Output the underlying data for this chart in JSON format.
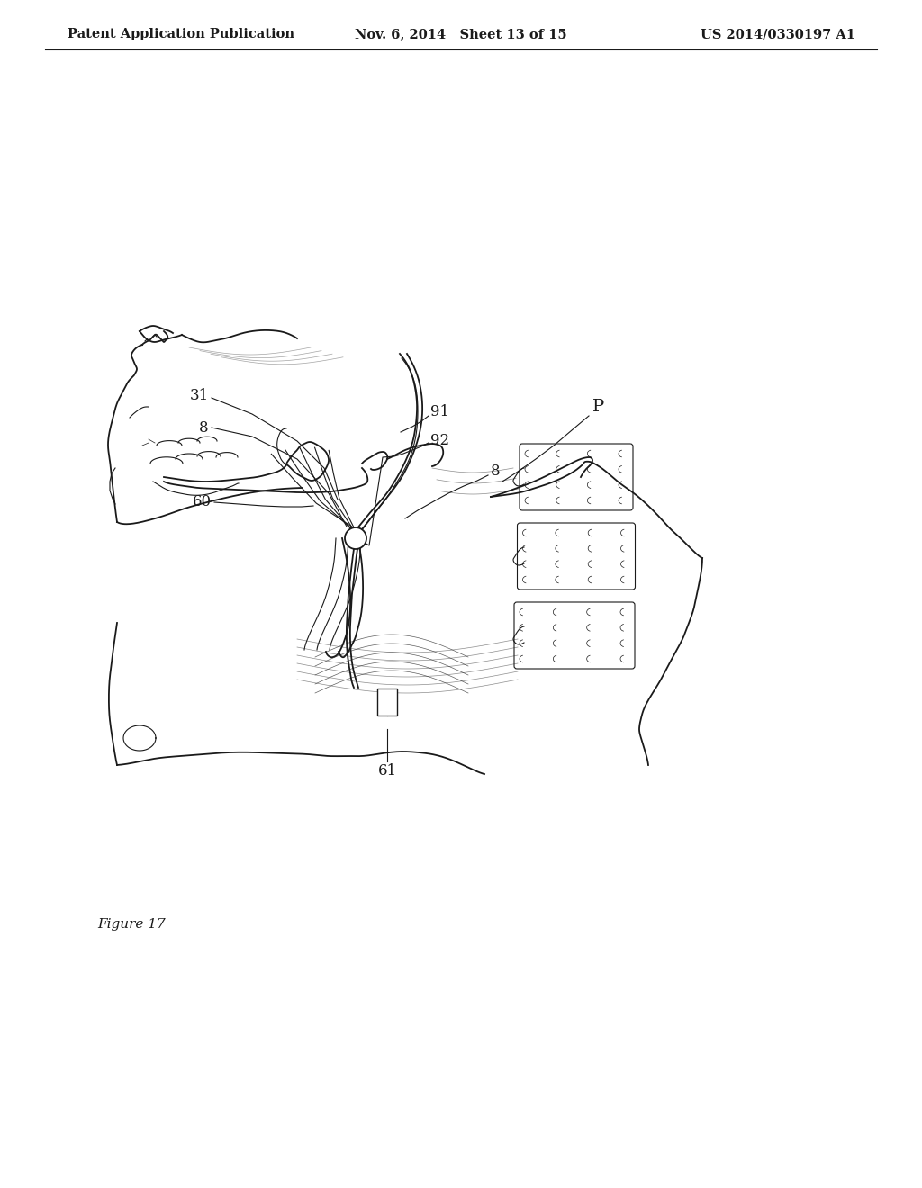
{
  "header_left": "Patent Application Publication",
  "header_mid": "Nov. 6, 2014   Sheet 13 of 15",
  "header_right": "US 2014/0330197 A1",
  "figure_caption": "Figure 17",
  "background_color": "#ffffff",
  "line_color": "#1a1a1a",
  "header_fontsize": 10.5,
  "caption_fontsize": 11,
  "label_fontsize": 12
}
